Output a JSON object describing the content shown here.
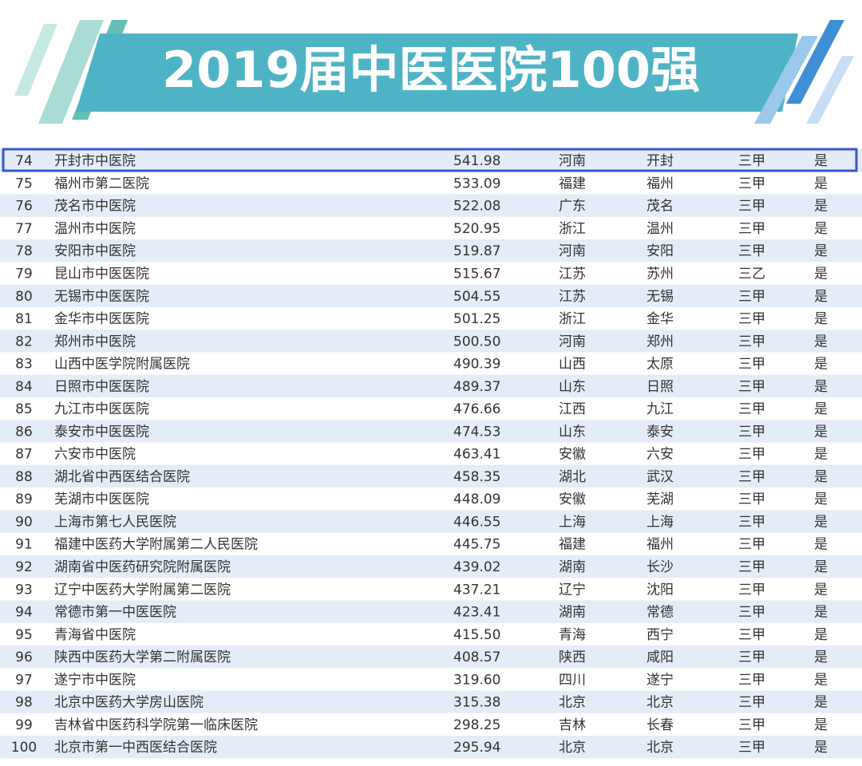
{
  "header": {
    "title": "2019届中医医院100强"
  },
  "table": {
    "rows": [
      [
        "74",
        "开封市中医院",
        "541.98",
        "河南",
        "开封",
        "三甲",
        "是"
      ],
      [
        "75",
        "福州市第二医院",
        "533.09",
        "福建",
        "福州",
        "三甲",
        "是"
      ],
      [
        "76",
        "茂名市中医院",
        "522.08",
        "广东",
        "茂名",
        "三甲",
        "是"
      ],
      [
        "77",
        "温州市中医院",
        "520.95",
        "浙江",
        "温州",
        "三甲",
        "是"
      ],
      [
        "78",
        "安阳市中医院",
        "519.87",
        "河南",
        "安阳",
        "三甲",
        "是"
      ],
      [
        "79",
        "昆山市中医医院",
        "515.67",
        "江苏",
        "苏州",
        "三乙",
        "是"
      ],
      [
        "80",
        "无锡市中医医院",
        "504.55",
        "江苏",
        "无锡",
        "三甲",
        "是"
      ],
      [
        "81",
        "金华市中医医院",
        "501.25",
        "浙江",
        "金华",
        "三甲",
        "是"
      ],
      [
        "82",
        "郑州市中医院",
        "500.50",
        "河南",
        "郑州",
        "三甲",
        "是"
      ],
      [
        "83",
        "山西中医学院附属医院",
        "490.39",
        "山西",
        "太原",
        "三甲",
        "是"
      ],
      [
        "84",
        "日照市中医医院",
        "489.37",
        "山东",
        "日照",
        "三甲",
        "是"
      ],
      [
        "85",
        "九江市中医医院",
        "476.66",
        "江西",
        "九江",
        "三甲",
        "是"
      ],
      [
        "86",
        "泰安市中医医院",
        "474.53",
        "山东",
        "泰安",
        "三甲",
        "是"
      ],
      [
        "87",
        "六安市中医院",
        "463.41",
        "安徽",
        "六安",
        "三甲",
        "是"
      ],
      [
        "88",
        "湖北省中西医结合医院",
        "458.35",
        "湖北",
        "武汉",
        "三甲",
        "是"
      ],
      [
        "89",
        "芜湖市中医医院",
        "448.09",
        "安徽",
        "芜湖",
        "三甲",
        "是"
      ],
      [
        "90",
        "上海市第七人民医院",
        "446.55",
        "上海",
        "上海",
        "三甲",
        "是"
      ],
      [
        "91",
        "福建中医药大学附属第二人民医院",
        "445.75",
        "福建",
        "福州",
        "三甲",
        "是"
      ],
      [
        "92",
        "湖南省中医药研究院附属医院",
        "439.02",
        "湖南",
        "长沙",
        "三甲",
        "是"
      ],
      [
        "93",
        "辽宁中医药大学附属第二医院",
        "437.21",
        "辽宁",
        "沈阳",
        "三甲",
        "是"
      ],
      [
        "94",
        "常德市第一中医医院",
        "423.41",
        "湖南",
        "常德",
        "三甲",
        "是"
      ],
      [
        "95",
        "青海省中医院",
        "415.50",
        "青海",
        "西宁",
        "三甲",
        "是"
      ],
      [
        "96",
        "陕西中医药大学第二附属医院",
        "408.57",
        "陕西",
        "咸阳",
        "三甲",
        "是"
      ],
      [
        "97",
        "遂宁市中医院",
        "319.60",
        "四川",
        "遂宁",
        "三甲",
        "是"
      ],
      [
        "98",
        "北京中医药大学房山医院",
        "315.38",
        "北京",
        "北京",
        "三甲",
        "是"
      ],
      [
        "99",
        "吉林省中医药科学院第一临床医院",
        "298.25",
        "吉林",
        "长春",
        "三甲",
        "是"
      ],
      [
        "100",
        "北京市第一中西医结合医院",
        "295.94",
        "北京",
        "北京",
        "三甲",
        "是"
      ]
    ]
  }
}
